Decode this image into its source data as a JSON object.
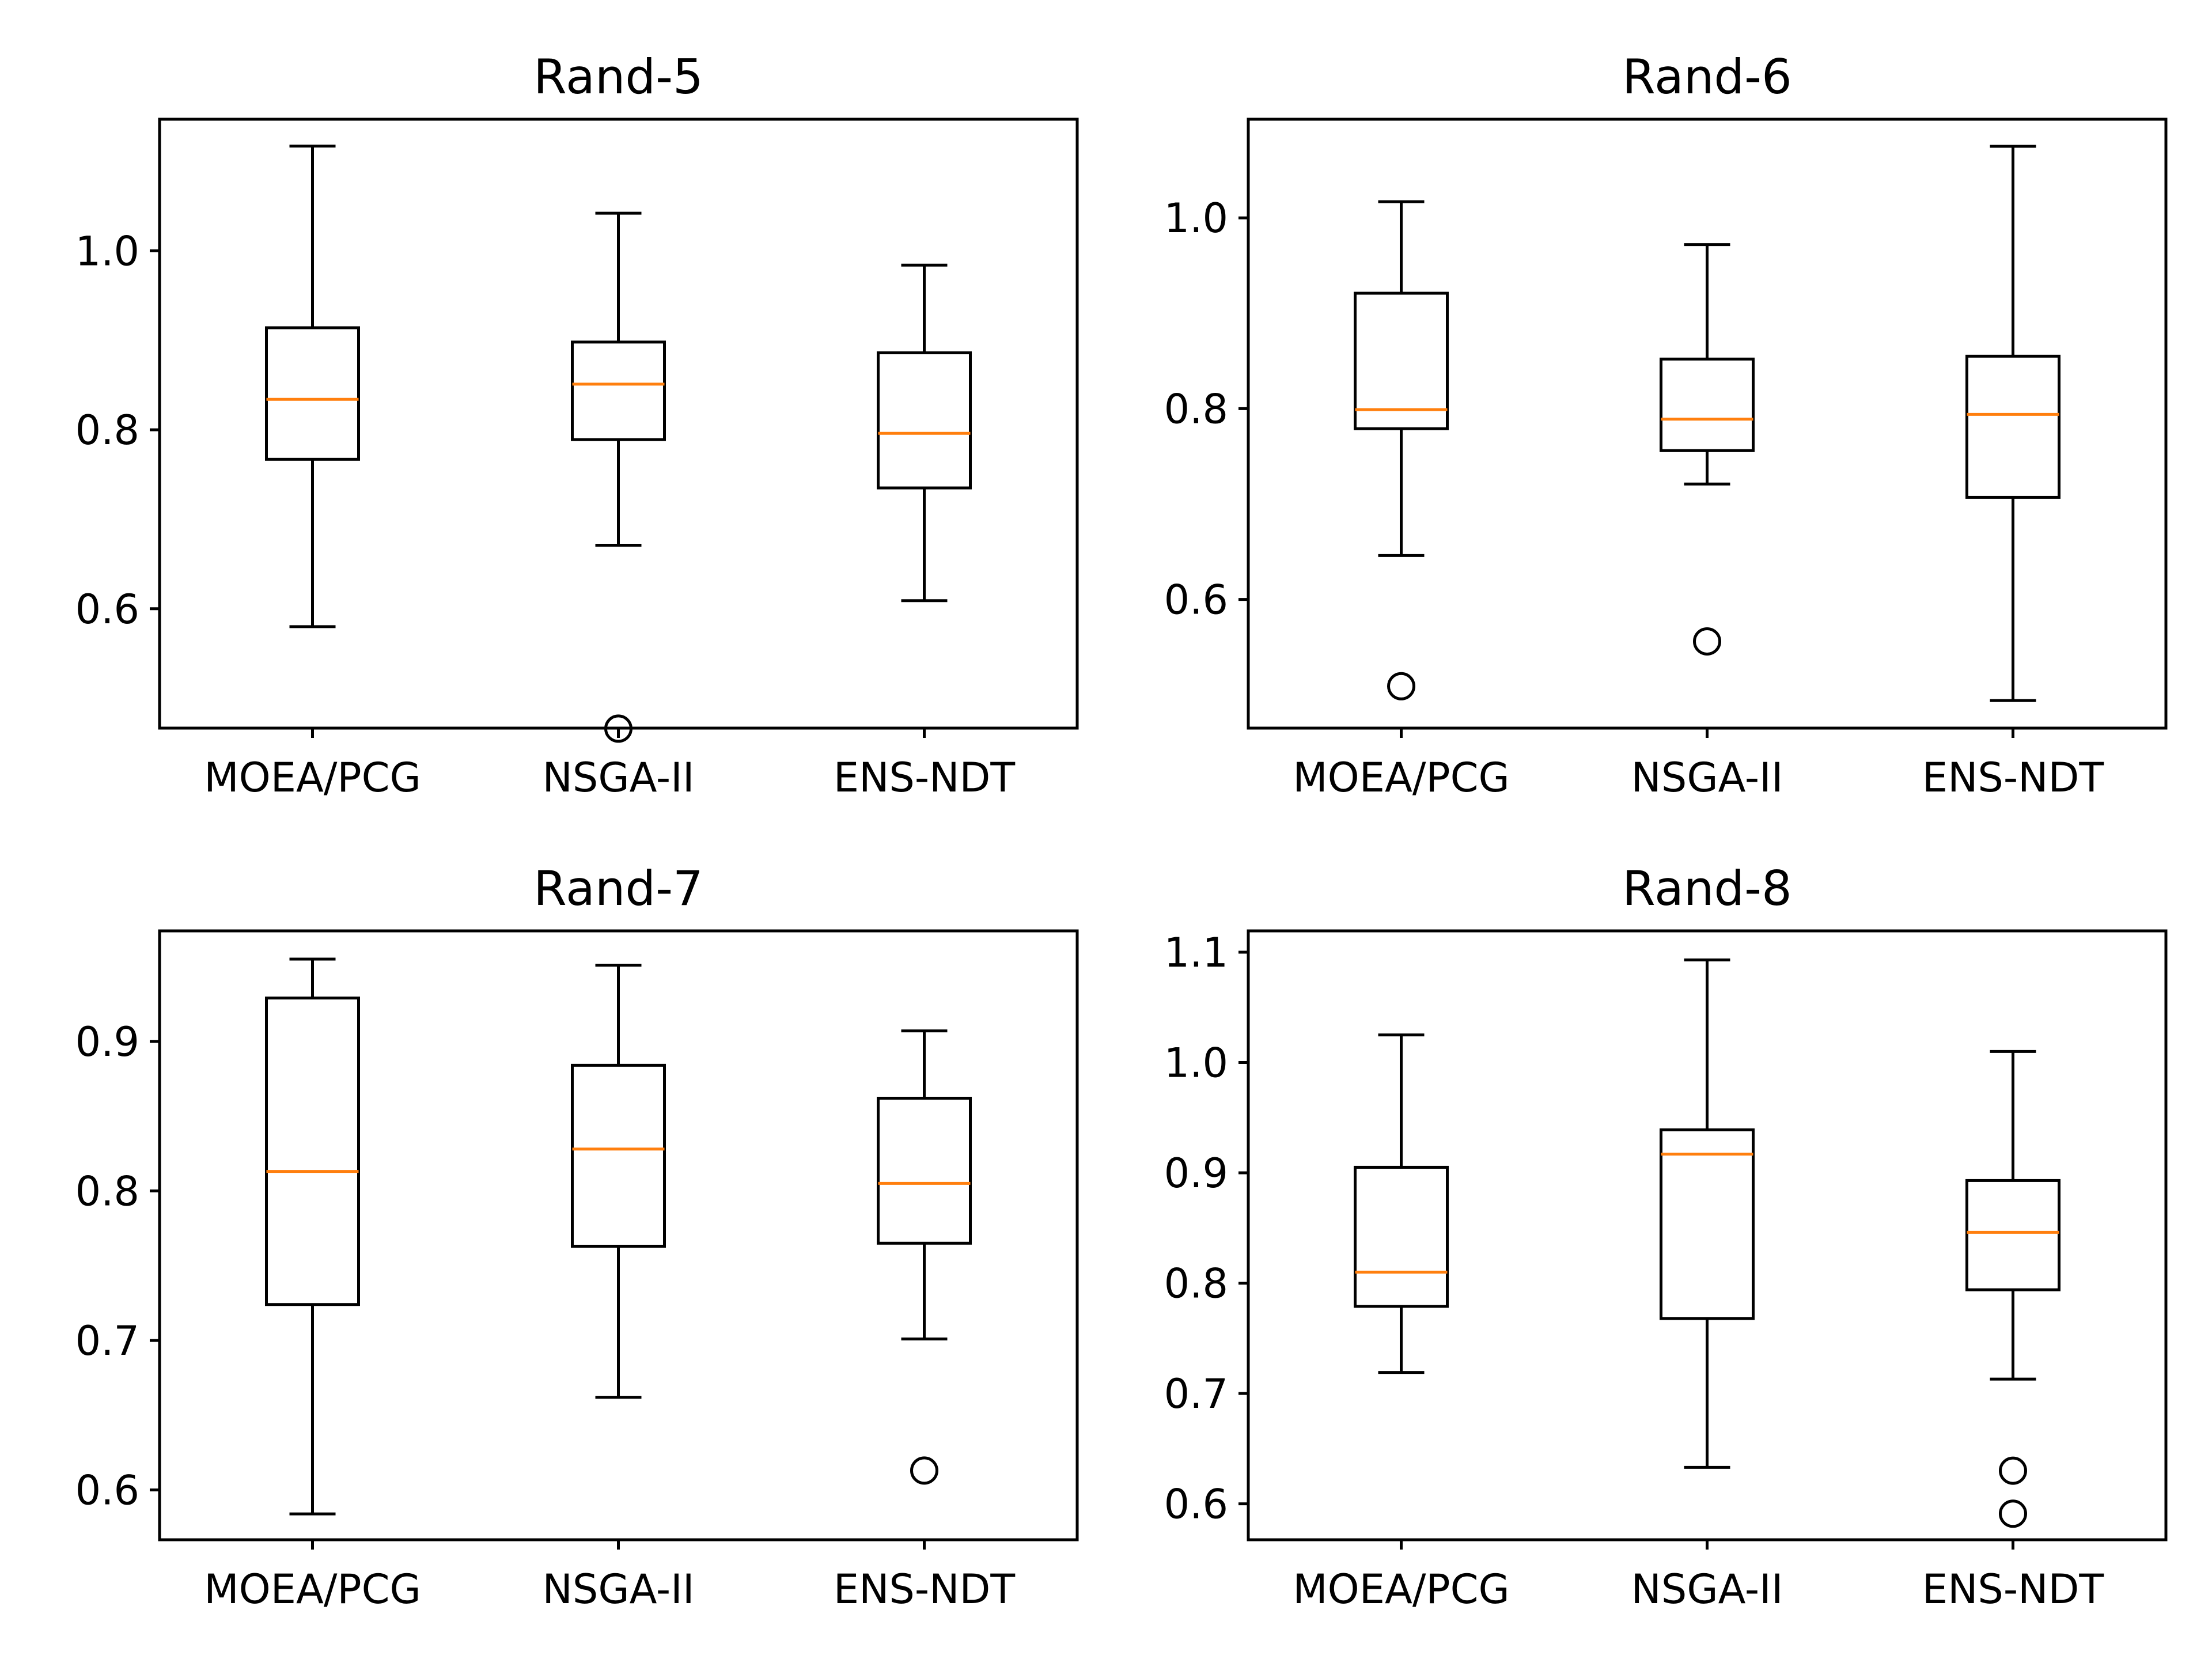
{
  "chart_data": [
    {
      "type": "box",
      "title": "Rand-5",
      "categories": [
        "MOEA/PCG",
        "NSGA-II",
        "ENS-NDT"
      ],
      "yticks": [
        "0.6",
        "0.8",
        "1.0"
      ],
      "ylim": [
        0.4666,
        1.147
      ],
      "boxes": [
        {
          "whisker_low": 0.58,
          "q1": 0.767,
          "median": 0.834,
          "q3": 0.914,
          "whisker_high": 1.117,
          "outliers": []
        },
        {
          "whisker_low": 0.671,
          "q1": 0.789,
          "median": 0.851,
          "q3": 0.898,
          "whisker_high": 1.042,
          "outliers": [
            0.466
          ]
        },
        {
          "whisker_low": 0.609,
          "q1": 0.735,
          "median": 0.796,
          "q3": 0.886,
          "whisker_high": 0.984,
          "outliers": []
        }
      ]
    },
    {
      "type": "box",
      "title": "Rand-6",
      "categories": [
        "MOEA/PCG",
        "NSGA-II",
        "ENS-NDT"
      ],
      "yticks": [
        "0.6",
        "0.8",
        "1.0"
      ],
      "ylim": [
        0.4651,
        1.1034
      ],
      "boxes": [
        {
          "whisker_low": 0.646,
          "q1": 0.779,
          "median": 0.799,
          "q3": 0.921,
          "whisker_high": 1.017,
          "outliers": [
            0.509
          ]
        },
        {
          "whisker_low": 0.721,
          "q1": 0.756,
          "median": 0.789,
          "q3": 0.852,
          "whisker_high": 0.972,
          "outliers": [
            0.556
          ]
        },
        {
          "whisker_low": 0.494,
          "q1": 0.707,
          "median": 0.794,
          "q3": 0.855,
          "whisker_high": 1.075,
          "outliers": []
        }
      ]
    },
    {
      "type": "box",
      "title": "Rand-7",
      "categories": [
        "MOEA/PCG",
        "NSGA-II",
        "ENS-NDT"
      ],
      "yticks": [
        "0.6",
        "0.7",
        "0.8",
        "0.9"
      ],
      "ylim": [
        0.5667,
        0.9739
      ],
      "boxes": [
        {
          "whisker_low": 0.584,
          "q1": 0.724,
          "median": 0.813,
          "q3": 0.929,
          "whisker_high": 0.955,
          "outliers": []
        },
        {
          "whisker_low": 0.662,
          "q1": 0.763,
          "median": 0.828,
          "q3": 0.884,
          "whisker_high": 0.951,
          "outliers": []
        },
        {
          "whisker_low": 0.701,
          "q1": 0.765,
          "median": 0.805,
          "q3": 0.862,
          "whisker_high": 0.907,
          "outliers": [
            0.613
          ]
        }
      ]
    },
    {
      "type": "box",
      "title": "Rand-8",
      "categories": [
        "MOEA/PCG",
        "NSGA-II",
        "ENS-NDT"
      ],
      "yticks": [
        "0.6",
        "0.7",
        "0.8",
        "0.9",
        "1.0",
        "1.1"
      ],
      "ylim": [
        0.5674,
        1.1193
      ],
      "boxes": [
        {
          "whisker_low": 0.719,
          "q1": 0.779,
          "median": 0.81,
          "q3": 0.905,
          "whisker_high": 1.025,
          "outliers": []
        },
        {
          "whisker_low": 0.633,
          "q1": 0.768,
          "median": 0.917,
          "q3": 0.939,
          "whisker_high": 1.093,
          "outliers": []
        },
        {
          "whisker_low": 0.713,
          "q1": 0.794,
          "median": 0.846,
          "q3": 0.893,
          "whisker_high": 1.01,
          "outliers": [
            0.63,
            0.591
          ]
        }
      ]
    }
  ],
  "colors": {
    "box": "#000000",
    "median": "#ff7f0e",
    "background": "#ffffff"
  }
}
